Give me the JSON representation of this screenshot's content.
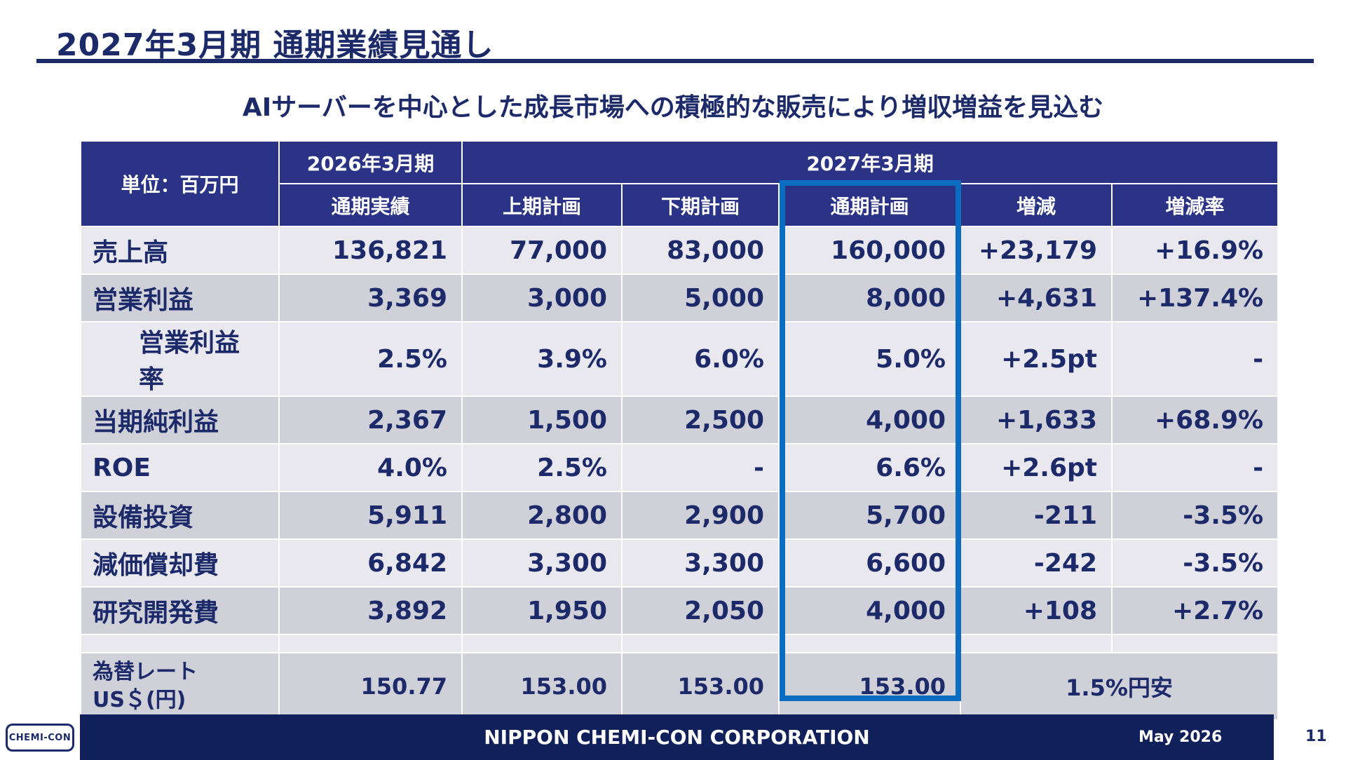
{
  "title": "2027年3月期 通期業績見通し",
  "subtitle": "AIサーバーを中心とした成長市場への積極的な販売により増収増益を見込む",
  "table": {
    "unit_label": "単位：百万円",
    "period_prev": "2026年3月期",
    "period_next": "2027年3月期",
    "columns": [
      "通期実績",
      "上期計画",
      "下期計画",
      "通期計画",
      "増減",
      "増減率"
    ],
    "rows": [
      {
        "label": "売上高",
        "values": [
          "136,821",
          "77,000",
          "83,000",
          "160,000",
          "+23,179",
          "+16.9%"
        ]
      },
      {
        "label": "営業利益",
        "values": [
          "3,369",
          "3,000",
          "5,000",
          "8,000",
          "+4,631",
          "+137.4%"
        ]
      },
      {
        "label": "営業利益率",
        "values": [
          "2.5%",
          "3.9%",
          "6.0%",
          "5.0%",
          "+2.5pt",
          "-"
        ]
      },
      {
        "label": "当期純利益",
        "values": [
          "2,367",
          "1,500",
          "2,500",
          "4,000",
          "+1,633",
          "+68.9%"
        ]
      },
      {
        "label": "ROE",
        "values": [
          "4.0%",
          "2.5%",
          "-",
          "6.6%",
          "+2.6pt",
          "-"
        ]
      },
      {
        "label": "設備投資",
        "values": [
          "5,911",
          "2,800",
          "2,900",
          "5,700",
          "-211",
          "-3.5%"
        ]
      },
      {
        "label": "減価償却費",
        "values": [
          "6,842",
          "3,300",
          "3,300",
          "6,600",
          "-242",
          "-3.5%"
        ]
      },
      {
        "label": "研究開発費",
        "values": [
          "3,892",
          "1,950",
          "2,050",
          "4,000",
          "+108",
          "+2.7%"
        ]
      }
    ],
    "fx": {
      "label_line1": "為替レート",
      "label_line2": "US＄(円)",
      "values": [
        "150.77",
        "153.00",
        "153.00",
        "153.00"
      ],
      "change": "1.5%円安"
    }
  },
  "footer": {
    "logo_text": "CHEMI-CON",
    "company": "NIPPON CHEMI-CON CORPORATION",
    "date": "May 2026",
    "page_number": "11"
  },
  "colors": {
    "header_bg": "#2b3387",
    "highlight_border": "#0c6cc0",
    "footer_bg": "#10205a",
    "text": "#1c2a6a"
  }
}
